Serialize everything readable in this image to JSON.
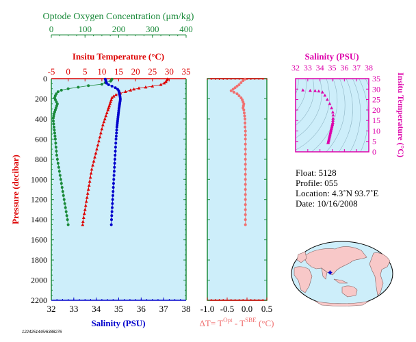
{
  "colors": {
    "oxygen": "#1a8a3a",
    "temperature": "#dd0000",
    "salinity": "#0000cc",
    "delta": "#f07070",
    "ts": "#dd00aa",
    "panel_bg": "#cdeefa",
    "black": "#000000"
  },
  "chart_data": [
    {
      "type": "line",
      "panel": "profiles",
      "ylabel": "Pressure (decibar)",
      "ylim": [
        2200,
        0
      ],
      "yticks": [
        0,
        200,
        400,
        600,
        800,
        1000,
        1200,
        1400,
        1600,
        1800,
        2000,
        2200
      ],
      "axes": {
        "oxygen": {
          "label": "Optode Oxygen Concentration (μm/kg)",
          "lim": [
            0,
            400
          ],
          "ticks": [
            0,
            100,
            200,
            300,
            400
          ]
        },
        "temperature": {
          "label": "Insitu Temperature (°C)",
          "lim": [
            -5,
            35
          ],
          "ticks": [
            -5,
            0,
            5,
            10,
            15,
            20,
            25,
            30,
            35
          ]
        },
        "salinity": {
          "label": "Salinity (PSU)",
          "lim": [
            32,
            38
          ],
          "ticks": [
            32,
            33,
            34,
            35,
            36,
            37,
            38
          ]
        }
      },
      "series": [
        {
          "key": "temperature",
          "marker": "triangle",
          "points": [
            [
              29.5,
              5
            ],
            [
              29.3,
              15
            ],
            [
              29.0,
              30
            ],
            [
              28.5,
              45
            ],
            [
              27.5,
              60
            ],
            [
              25.0,
              75
            ],
            [
              23.0,
              85
            ],
            [
              21.0,
              95
            ],
            [
              19.5,
              105
            ],
            [
              18.5,
              115
            ],
            [
              17.0,
              130
            ],
            [
              15.5,
              145
            ],
            [
              14.2,
              160
            ],
            [
              13.5,
              175
            ],
            [
              13.0,
              190
            ],
            [
              12.8,
              210
            ],
            [
              12.6,
              230
            ],
            [
              12.4,
              250
            ],
            [
              12.2,
              270
            ],
            [
              12.0,
              290
            ],
            [
              11.8,
              310
            ],
            [
              11.5,
              340
            ],
            [
              11.2,
              370
            ],
            [
              10.9,
              400
            ],
            [
              10.6,
              430
            ],
            [
              10.3,
              460
            ],
            [
              10.0,
              500
            ],
            [
              9.7,
              540
            ],
            [
              9.4,
              580
            ],
            [
              9.1,
              620
            ],
            [
              8.8,
              660
            ],
            [
              8.5,
              700
            ],
            [
              8.2,
              740
            ],
            [
              7.9,
              780
            ],
            [
              7.6,
              820
            ],
            [
              7.3,
              860
            ],
            [
              7.0,
              900
            ],
            [
              6.8,
              940
            ],
            [
              6.6,
              980
            ],
            [
              6.4,
              1020
            ],
            [
              6.2,
              1060
            ],
            [
              6.0,
              1100
            ],
            [
              5.8,
              1140
            ],
            [
              5.6,
              1180
            ],
            [
              5.4,
              1220
            ],
            [
              5.2,
              1260
            ],
            [
              5.0,
              1300
            ],
            [
              4.8,
              1340
            ],
            [
              4.6,
              1380
            ],
            [
              4.4,
              1420
            ],
            [
              4.3,
              1450
            ]
          ]
        },
        {
          "key": "salinity",
          "marker": "circle",
          "points": [
            [
              34.4,
              5
            ],
            [
              34.42,
              15
            ],
            [
              34.44,
              30
            ],
            [
              34.46,
              45
            ],
            [
              34.55,
              60
            ],
            [
              34.7,
              75
            ],
            [
              34.85,
              90
            ],
            [
              34.95,
              105
            ],
            [
              35.0,
              120
            ],
            [
              35.02,
              135
            ],
            [
              35.03,
              150
            ],
            [
              35.05,
              165
            ],
            [
              35.06,
              180
            ],
            [
              35.07,
              195
            ],
            [
              35.07,
              210
            ],
            [
              35.06,
              225
            ],
            [
              35.05,
              240
            ],
            [
              35.04,
              255
            ],
            [
              35.03,
              270
            ],
            [
              35.02,
              285
            ],
            [
              35.01,
              300
            ],
            [
              35.0,
              320
            ],
            [
              34.99,
              340
            ],
            [
              34.98,
              360
            ],
            [
              34.97,
              380
            ],
            [
              34.96,
              400
            ],
            [
              34.95,
              420
            ],
            [
              34.94,
              440
            ],
            [
              34.93,
              460
            ],
            [
              34.92,
              480
            ],
            [
              34.91,
              510
            ],
            [
              34.9,
              540
            ],
            [
              34.89,
              570
            ],
            [
              34.88,
              600
            ],
            [
              34.87,
              640
            ],
            [
              34.86,
              680
            ],
            [
              34.85,
              720
            ],
            [
              34.84,
              760
            ],
            [
              34.83,
              800
            ],
            [
              34.82,
              840
            ],
            [
              34.81,
              880
            ],
            [
              34.8,
              920
            ],
            [
              34.79,
              960
            ],
            [
              34.78,
              1000
            ],
            [
              34.77,
              1040
            ],
            [
              34.76,
              1080
            ],
            [
              34.75,
              1120
            ],
            [
              34.74,
              1160
            ],
            [
              34.73,
              1200
            ],
            [
              34.72,
              1240
            ],
            [
              34.71,
              1280
            ],
            [
              34.7,
              1320
            ],
            [
              34.69,
              1360
            ],
            [
              34.68,
              1400
            ],
            [
              34.67,
              1450
            ]
          ]
        },
        {
          "key": "oxygen",
          "marker": "circle",
          "points": [
            [
              180,
              5
            ],
            [
              178,
              15
            ],
            [
              176,
              25
            ],
            [
              160,
              40
            ],
            [
              150,
              55
            ],
            [
              110,
              70
            ],
            [
              80,
              85
            ],
            [
              50,
              100
            ],
            [
              30,
              115
            ],
            [
              20,
              130
            ],
            [
              15,
              150
            ],
            [
              12,
              170
            ],
            [
              10,
              190
            ],
            [
              12,
              210
            ],
            [
              15,
              230
            ],
            [
              18,
              250
            ],
            [
              16,
              270
            ],
            [
              14,
              290
            ],
            [
              12,
              310
            ],
            [
              10,
              330
            ],
            [
              8,
              350
            ],
            [
              7,
              370
            ],
            [
              6,
              390
            ],
            [
              6,
              420
            ],
            [
              7,
              450
            ],
            [
              8,
              480
            ],
            [
              9,
              510
            ],
            [
              10,
              540
            ],
            [
              11,
              570
            ],
            [
              12,
              600
            ],
            [
              13,
              640
            ],
            [
              14,
              680
            ],
            [
              15,
              720
            ],
            [
              16,
              760
            ],
            [
              18,
              800
            ],
            [
              20,
              840
            ],
            [
              22,
              880
            ],
            [
              24,
              920
            ],
            [
              26,
              960
            ],
            [
              28,
              1000
            ],
            [
              30,
              1040
            ],
            [
              32,
              1080
            ],
            [
              34,
              1120
            ],
            [
              36,
              1160
            ],
            [
              38,
              1200
            ],
            [
              40,
              1240
            ],
            [
              42,
              1280
            ],
            [
              44,
              1320
            ],
            [
              46,
              1360
            ],
            [
              48,
              1400
            ],
            [
              50,
              1450
            ]
          ]
        }
      ],
      "id_text": "1224251445/6388276"
    },
    {
      "type": "scatter",
      "panel": "delta",
      "xlabel": "ΔT= T^Opt - T^SBE (°C)",
      "xlim": [
        -1.0,
        0.5
      ],
      "xticks": [
        -1.0,
        -0.5,
        0.0,
        0.5
      ],
      "xtick_labels": [
        "-1.0",
        "-0.5",
        "0.0",
        "0.5"
      ],
      "ylim": [
        2200,
        0
      ],
      "points": [
        [
          -0.05,
          5
        ],
        [
          -0.1,
          20
        ],
        [
          -0.15,
          40
        ],
        [
          -0.2,
          60
        ],
        [
          -0.25,
          75
        ],
        [
          -0.3,
          90
        ],
        [
          -0.35,
          105
        ],
        [
          -0.4,
          120
        ],
        [
          -0.33,
          135
        ],
        [
          -0.25,
          150
        ],
        [
          -0.2,
          170
        ],
        [
          -0.15,
          190
        ],
        [
          -0.12,
          210
        ],
        [
          -0.1,
          230
        ],
        [
          -0.08,
          250
        ],
        [
          -0.09,
          270
        ],
        [
          -0.1,
          290
        ],
        [
          -0.08,
          310
        ],
        [
          -0.07,
          340
        ],
        [
          -0.06,
          370
        ],
        [
          -0.05,
          400
        ],
        [
          -0.05,
          440
        ],
        [
          -0.05,
          480
        ],
        [
          -0.04,
          520
        ],
        [
          -0.04,
          560
        ],
        [
          -0.04,
          600
        ],
        [
          -0.04,
          650
        ],
        [
          -0.04,
          700
        ],
        [
          -0.04,
          750
        ],
        [
          -0.04,
          800
        ],
        [
          -0.04,
          850
        ],
        [
          -0.04,
          900
        ],
        [
          -0.04,
          950
        ],
        [
          -0.04,
          1000
        ],
        [
          -0.04,
          1050
        ],
        [
          -0.04,
          1100
        ],
        [
          -0.04,
          1150
        ],
        [
          -0.04,
          1200
        ],
        [
          -0.04,
          1250
        ],
        [
          -0.04,
          1300
        ],
        [
          -0.04,
          1350
        ],
        [
          -0.04,
          1400
        ],
        [
          -0.04,
          1450
        ]
      ]
    },
    {
      "type": "scatter",
      "panel": "ts",
      "xlabel": "Salinity (PSU)",
      "ylabel": "Insitu Temperature (°C)",
      "xlim": [
        32,
        38
      ],
      "xticks": [
        32,
        33,
        34,
        35,
        36,
        37,
        38
      ],
      "ylim": [
        0,
        35
      ],
      "yticks": [
        0,
        5,
        10,
        15,
        20,
        25,
        30,
        35
      ],
      "points": [
        [
          32.6,
          29.5
        ],
        [
          33.2,
          29.3
        ],
        [
          33.6,
          29.2
        ],
        [
          33.9,
          29.0
        ],
        [
          34.2,
          28.5
        ],
        [
          34.4,
          27.0
        ],
        [
          34.6,
          25.0
        ],
        [
          34.8,
          23.0
        ],
        [
          34.95,
          21.0
        ],
        [
          35.05,
          19.0
        ],
        [
          35.08,
          17.5
        ],
        [
          35.07,
          16.0
        ],
        [
          35.06,
          15.0
        ],
        [
          35.05,
          14.0
        ],
        [
          35.03,
          13.5
        ],
        [
          35.01,
          13.0
        ],
        [
          34.99,
          12.5
        ],
        [
          34.97,
          12.0
        ],
        [
          34.95,
          11.5
        ],
        [
          34.93,
          11.0
        ],
        [
          34.91,
          10.5
        ],
        [
          34.89,
          10.0
        ],
        [
          34.87,
          9.5
        ],
        [
          34.85,
          9.0
        ],
        [
          34.83,
          8.5
        ],
        [
          34.81,
          8.0
        ],
        [
          34.79,
          7.5
        ],
        [
          34.77,
          7.0
        ],
        [
          34.75,
          6.5
        ],
        [
          34.73,
          6.0
        ],
        [
          34.71,
          5.5
        ],
        [
          34.69,
          5.0
        ],
        [
          34.67,
          4.5
        ],
        [
          34.66,
          4.3
        ]
      ]
    }
  ],
  "info": {
    "float": "Float:  5128",
    "profile": "Profile:  055",
    "location": "Location:  4.3˚N  93.7˚E",
    "date": "Date:  10/16/2008"
  }
}
